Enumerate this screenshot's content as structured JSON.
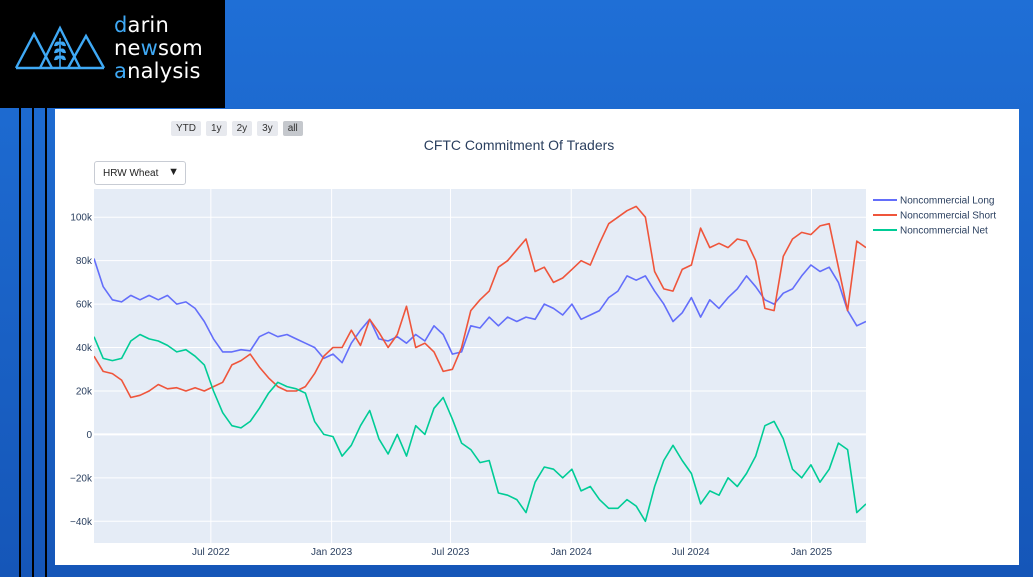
{
  "branding": {
    "line1_accent": "d",
    "line1_rest": "arin",
    "line2_a": "ne",
    "line2_accent": "w",
    "line2_b": "som",
    "line3_accent": "a",
    "line3_rest": "nalysis"
  },
  "range_buttons": [
    {
      "label": "YTD",
      "active": false
    },
    {
      "label": "1y",
      "active": false
    },
    {
      "label": "2y",
      "active": false
    },
    {
      "label": "3y",
      "active": false
    },
    {
      "label": "all",
      "active": true
    }
  ],
  "dropdown": {
    "selected": "HRW Wheat",
    "arrow": "▼"
  },
  "chart_data": {
    "type": "line",
    "title": "CFTC Commitment Of Traders",
    "xlabel": "",
    "ylabel": "",
    "xlim": [
      "2022-01-04",
      "2025-03-25"
    ],
    "ylim": [
      -50000,
      113000
    ],
    "yticks": [
      {
        "v": 100000,
        "label": "100k"
      },
      {
        "v": 80000,
        "label": "80k"
      },
      {
        "v": 60000,
        "label": "60k"
      },
      {
        "v": 40000,
        "label": "40k"
      },
      {
        "v": 20000,
        "label": "20k"
      },
      {
        "v": 0,
        "label": "0"
      },
      {
        "v": -20000,
        "label": "−20k"
      },
      {
        "v": -40000,
        "label": "−40k"
      }
    ],
    "xticks": [
      {
        "date": "2022-07-01",
        "label": "Jul 2022"
      },
      {
        "date": "2023-01-01",
        "label": "Jan 2023"
      },
      {
        "date": "2023-07-01",
        "label": "Jul 2023"
      },
      {
        "date": "2024-01-01",
        "label": "Jan 2024"
      },
      {
        "date": "2024-07-01",
        "label": "Jul 2024"
      },
      {
        "date": "2025-01-01",
        "label": "Jan 2025"
      }
    ],
    "grid": true,
    "legend_position": "top-right",
    "colors": {
      "long": "#636efa",
      "short": "#ef553b",
      "net": "#00cc96",
      "plot_bg": "#e5ecf6",
      "grid": "#ffffff"
    },
    "series": [
      {
        "name": "Noncommercial Long",
        "color": "#636efa",
        "points": [
          [
            "2022-01-04",
            81000
          ],
          [
            "2022-01-18",
            68000
          ],
          [
            "2022-02-01",
            62000
          ],
          [
            "2022-02-15",
            61000
          ],
          [
            "2022-03-01",
            64000
          ],
          [
            "2022-03-15",
            62000
          ],
          [
            "2022-03-29",
            64000
          ],
          [
            "2022-04-12",
            62000
          ],
          [
            "2022-04-26",
            64000
          ],
          [
            "2022-05-10",
            60000
          ],
          [
            "2022-05-24",
            61000
          ],
          [
            "2022-06-07",
            58000
          ],
          [
            "2022-06-21",
            52000
          ],
          [
            "2022-07-05",
            44000
          ],
          [
            "2022-07-19",
            38000
          ],
          [
            "2022-08-02",
            38000
          ],
          [
            "2022-08-16",
            39000
          ],
          [
            "2022-08-30",
            38500
          ],
          [
            "2022-09-13",
            45000
          ],
          [
            "2022-09-27",
            47000
          ],
          [
            "2022-10-11",
            45000
          ],
          [
            "2022-10-25",
            46000
          ],
          [
            "2022-11-08",
            44000
          ],
          [
            "2022-11-22",
            42000
          ],
          [
            "2022-12-06",
            40000
          ],
          [
            "2022-12-20",
            35000
          ],
          [
            "2023-01-03",
            37000
          ],
          [
            "2023-01-17",
            33000
          ],
          [
            "2023-01-31",
            42000
          ],
          [
            "2023-02-14",
            48000
          ],
          [
            "2023-02-28",
            53000
          ],
          [
            "2023-03-14",
            44000
          ],
          [
            "2023-03-28",
            43000
          ],
          [
            "2023-04-11",
            45000
          ],
          [
            "2023-04-25",
            42000
          ],
          [
            "2023-05-09",
            46000
          ],
          [
            "2023-05-23",
            43000
          ],
          [
            "2023-06-06",
            50000
          ],
          [
            "2023-06-20",
            46000
          ],
          [
            "2023-07-04",
            37000
          ],
          [
            "2023-07-18",
            38000
          ],
          [
            "2023-08-01",
            50000
          ],
          [
            "2023-08-15",
            49000
          ],
          [
            "2023-08-29",
            54000
          ],
          [
            "2023-09-12",
            50000
          ],
          [
            "2023-09-26",
            54000
          ],
          [
            "2023-10-10",
            52000
          ],
          [
            "2023-10-24",
            54000
          ],
          [
            "2023-11-07",
            53000
          ],
          [
            "2023-11-21",
            60000
          ],
          [
            "2023-12-05",
            58000
          ],
          [
            "2023-12-19",
            55000
          ],
          [
            "2024-01-02",
            60000
          ],
          [
            "2024-01-16",
            53000
          ],
          [
            "2024-01-30",
            55000
          ],
          [
            "2024-02-13",
            57000
          ],
          [
            "2024-02-27",
            63000
          ],
          [
            "2024-03-12",
            66000
          ],
          [
            "2024-03-26",
            73000
          ],
          [
            "2024-04-09",
            71000
          ],
          [
            "2024-04-23",
            73000
          ],
          [
            "2024-05-07",
            66000
          ],
          [
            "2024-05-21",
            60000
          ],
          [
            "2024-06-04",
            52000
          ],
          [
            "2024-06-18",
            56000
          ],
          [
            "2024-07-02",
            63000
          ],
          [
            "2024-07-16",
            54000
          ],
          [
            "2024-07-30",
            62000
          ],
          [
            "2024-08-13",
            58000
          ],
          [
            "2024-08-27",
            63000
          ],
          [
            "2024-09-10",
            67000
          ],
          [
            "2024-09-24",
            73000
          ],
          [
            "2024-10-08",
            68000
          ],
          [
            "2024-10-22",
            62000
          ],
          [
            "2024-11-05",
            60000
          ],
          [
            "2024-11-19",
            65000
          ],
          [
            "2024-12-03",
            67000
          ],
          [
            "2024-12-17",
            73000
          ],
          [
            "2024-12-31",
            78000
          ],
          [
            "2025-01-14",
            75000
          ],
          [
            "2025-01-28",
            77000
          ],
          [
            "2025-02-11",
            70000
          ],
          [
            "2025-02-25",
            57000
          ],
          [
            "2025-03-11",
            50000
          ],
          [
            "2025-03-25",
            52000
          ]
        ]
      },
      {
        "name": "Noncommercial Short",
        "color": "#ef553b",
        "points": [
          [
            "2022-01-04",
            36000
          ],
          [
            "2022-01-18",
            29000
          ],
          [
            "2022-02-01",
            28000
          ],
          [
            "2022-02-15",
            25000
          ],
          [
            "2022-03-01",
            17000
          ],
          [
            "2022-03-15",
            18000
          ],
          [
            "2022-03-29",
            20000
          ],
          [
            "2022-04-12",
            23000
          ],
          [
            "2022-04-26",
            21000
          ],
          [
            "2022-05-10",
            21500
          ],
          [
            "2022-05-24",
            20000
          ],
          [
            "2022-06-07",
            21500
          ],
          [
            "2022-06-21",
            20000
          ],
          [
            "2022-07-05",
            22000
          ],
          [
            "2022-07-19",
            24000
          ],
          [
            "2022-08-02",
            32000
          ],
          [
            "2022-08-16",
            34000
          ],
          [
            "2022-08-30",
            37000
          ],
          [
            "2022-09-13",
            31000
          ],
          [
            "2022-09-27",
            26000
          ],
          [
            "2022-10-11",
            22000
          ],
          [
            "2022-10-25",
            20000
          ],
          [
            "2022-11-08",
            20000
          ],
          [
            "2022-11-22",
            22000
          ],
          [
            "2022-12-06",
            28000
          ],
          [
            "2022-12-20",
            36000
          ],
          [
            "2023-01-03",
            40000
          ],
          [
            "2023-01-17",
            40000
          ],
          [
            "2023-01-31",
            48000
          ],
          [
            "2023-02-14",
            41000
          ],
          [
            "2023-02-28",
            53000
          ],
          [
            "2023-03-14",
            47000
          ],
          [
            "2023-03-28",
            40000
          ],
          [
            "2023-04-11",
            46000
          ],
          [
            "2023-04-25",
            59000
          ],
          [
            "2023-05-09",
            40000
          ],
          [
            "2023-05-23",
            42000
          ],
          [
            "2023-06-06",
            38000
          ],
          [
            "2023-06-20",
            29000
          ],
          [
            "2023-07-04",
            30000
          ],
          [
            "2023-07-18",
            40000
          ],
          [
            "2023-08-01",
            57000
          ],
          [
            "2023-08-15",
            62000
          ],
          [
            "2023-08-29",
            66000
          ],
          [
            "2023-09-12",
            77000
          ],
          [
            "2023-09-26",
            80000
          ],
          [
            "2023-10-10",
            85000
          ],
          [
            "2023-10-24",
            90000
          ],
          [
            "2023-11-07",
            75000
          ],
          [
            "2023-11-21",
            77000
          ],
          [
            "2023-12-05",
            70000
          ],
          [
            "2023-12-19",
            72000
          ],
          [
            "2024-01-02",
            76000
          ],
          [
            "2024-01-16",
            80000
          ],
          [
            "2024-01-30",
            78000
          ],
          [
            "2024-02-13",
            88000
          ],
          [
            "2024-02-27",
            97000
          ],
          [
            "2024-03-12",
            100000
          ],
          [
            "2024-03-26",
            103000
          ],
          [
            "2024-04-09",
            105000
          ],
          [
            "2024-04-23",
            100000
          ],
          [
            "2024-05-07",
            75000
          ],
          [
            "2024-05-21",
            67000
          ],
          [
            "2024-06-04",
            66000
          ],
          [
            "2024-06-18",
            76000
          ],
          [
            "2024-07-02",
            78000
          ],
          [
            "2024-07-16",
            95000
          ],
          [
            "2024-07-30",
            86000
          ],
          [
            "2024-08-13",
            88000
          ],
          [
            "2024-08-27",
            86000
          ],
          [
            "2024-09-10",
            90000
          ],
          [
            "2024-09-24",
            89000
          ],
          [
            "2024-10-08",
            80000
          ],
          [
            "2024-10-22",
            58000
          ],
          [
            "2024-11-05",
            57000
          ],
          [
            "2024-11-19",
            82000
          ],
          [
            "2024-12-03",
            90000
          ],
          [
            "2024-12-17",
            93000
          ],
          [
            "2024-12-31",
            92000
          ],
          [
            "2025-01-14",
            96000
          ],
          [
            "2025-01-28",
            97000
          ],
          [
            "2025-02-11",
            77000
          ],
          [
            "2025-02-25",
            57000
          ],
          [
            "2025-03-11",
            89000
          ],
          [
            "2025-03-25",
            86000
          ]
        ]
      },
      {
        "name": "Noncommercial Net",
        "color": "#00cc96",
        "points": [
          [
            "2022-01-04",
            45000
          ],
          [
            "2022-01-18",
            35000
          ],
          [
            "2022-02-01",
            34000
          ],
          [
            "2022-02-15",
            35000
          ],
          [
            "2022-03-01",
            43000
          ],
          [
            "2022-03-15",
            46000
          ],
          [
            "2022-03-29",
            44000
          ],
          [
            "2022-04-12",
            43000
          ],
          [
            "2022-04-26",
            41000
          ],
          [
            "2022-05-10",
            38000
          ],
          [
            "2022-05-24",
            39000
          ],
          [
            "2022-06-07",
            36000
          ],
          [
            "2022-06-21",
            32000
          ],
          [
            "2022-07-05",
            20000
          ],
          [
            "2022-07-19",
            10000
          ],
          [
            "2022-08-02",
            4000
          ],
          [
            "2022-08-16",
            3000
          ],
          [
            "2022-08-30",
            6000
          ],
          [
            "2022-09-13",
            12000
          ],
          [
            "2022-09-27",
            19000
          ],
          [
            "2022-10-11",
            24000
          ],
          [
            "2022-10-25",
            22000
          ],
          [
            "2022-11-08",
            21000
          ],
          [
            "2022-11-22",
            19000
          ],
          [
            "2022-12-06",
            6000
          ],
          [
            "2022-12-20",
            0
          ],
          [
            "2023-01-03",
            -1000
          ],
          [
            "2023-01-17",
            -10000
          ],
          [
            "2023-01-31",
            -5000
          ],
          [
            "2023-02-14",
            4000
          ],
          [
            "2023-02-28",
            11000
          ],
          [
            "2023-03-14",
            -2000
          ],
          [
            "2023-03-28",
            -9000
          ],
          [
            "2023-04-11",
            0
          ],
          [
            "2023-04-25",
            -10000
          ],
          [
            "2023-05-09",
            4000
          ],
          [
            "2023-05-23",
            0
          ],
          [
            "2023-06-06",
            12000
          ],
          [
            "2023-06-20",
            17000
          ],
          [
            "2023-07-04",
            7000
          ],
          [
            "2023-07-18",
            -4000
          ],
          [
            "2023-08-01",
            -7000
          ],
          [
            "2023-08-15",
            -13000
          ],
          [
            "2023-08-29",
            -12000
          ],
          [
            "2023-09-12",
            -27000
          ],
          [
            "2023-09-26",
            -28000
          ],
          [
            "2023-10-10",
            -30000
          ],
          [
            "2023-10-24",
            -36000
          ],
          [
            "2023-11-07",
            -22000
          ],
          [
            "2023-11-21",
            -15000
          ],
          [
            "2023-12-05",
            -16000
          ],
          [
            "2023-12-19",
            -20000
          ],
          [
            "2024-01-02",
            -16000
          ],
          [
            "2024-01-16",
            -26000
          ],
          [
            "2024-01-30",
            -24000
          ],
          [
            "2024-02-13",
            -30000
          ],
          [
            "2024-02-27",
            -34000
          ],
          [
            "2024-03-12",
            -34000
          ],
          [
            "2024-03-26",
            -30000
          ],
          [
            "2024-04-09",
            -33000
          ],
          [
            "2024-04-23",
            -40000
          ],
          [
            "2024-05-07",
            -24000
          ],
          [
            "2024-05-21",
            -12000
          ],
          [
            "2024-06-04",
            -5000
          ],
          [
            "2024-06-18",
            -12000
          ],
          [
            "2024-07-02",
            -18000
          ],
          [
            "2024-07-16",
            -32000
          ],
          [
            "2024-07-30",
            -26000
          ],
          [
            "2024-08-13",
            -28000
          ],
          [
            "2024-08-27",
            -20000
          ],
          [
            "2024-09-10",
            -24000
          ],
          [
            "2024-09-24",
            -18000
          ],
          [
            "2024-10-08",
            -10000
          ],
          [
            "2024-10-22",
            4000
          ],
          [
            "2024-11-05",
            6000
          ],
          [
            "2024-11-19",
            -2000
          ],
          [
            "2024-12-03",
            -16000
          ],
          [
            "2024-12-17",
            -20000
          ],
          [
            "2024-12-31",
            -14000
          ],
          [
            "2025-01-14",
            -22000
          ],
          [
            "2025-01-28",
            -16000
          ],
          [
            "2025-02-11",
            -4000
          ],
          [
            "2025-02-25",
            -7000
          ],
          [
            "2025-03-11",
            -36000
          ],
          [
            "2025-03-25",
            -32000
          ]
        ]
      }
    ]
  }
}
